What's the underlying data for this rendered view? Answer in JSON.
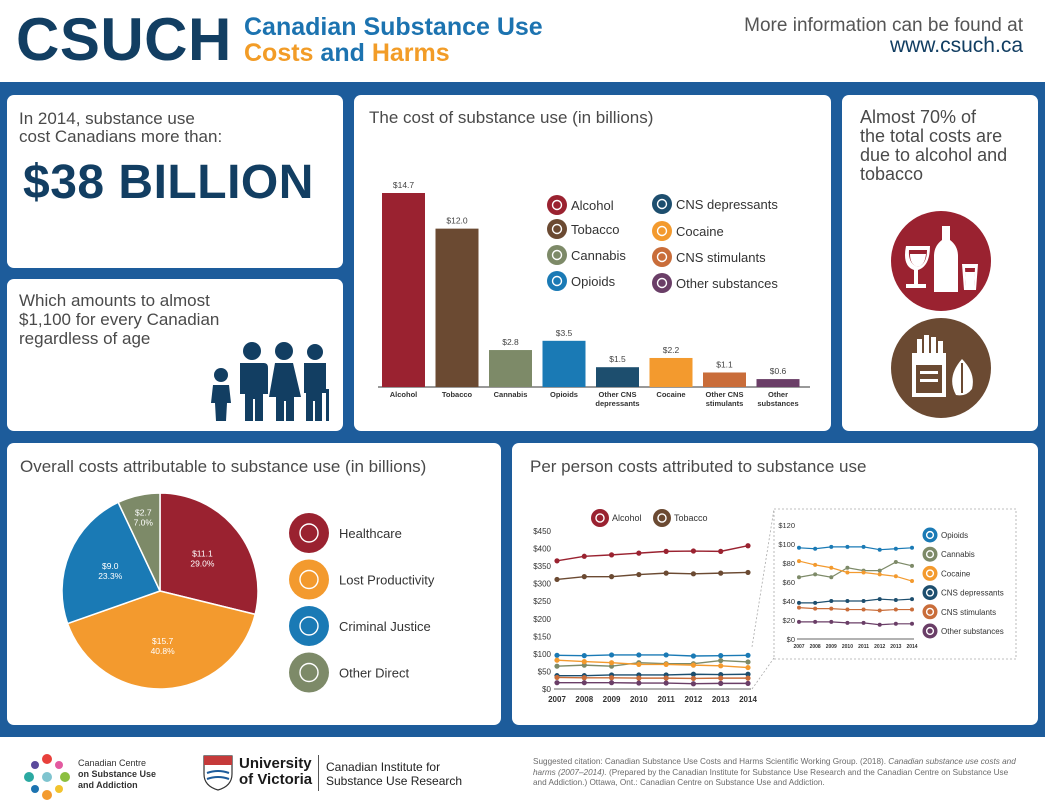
{
  "header": {
    "logo": "CSUCH",
    "title_line1": "Canadian Substance Use",
    "title_line2_a": "Costs",
    "title_line2_b": "and",
    "title_line2_c": "Harms",
    "info_text": "More information can be found at",
    "info_url": "www.csuch.ca"
  },
  "panel_total": {
    "line1": "In 2014, substance use",
    "line2": "cost Canadians more than:",
    "big_value": "$38 BILLION"
  },
  "panel_per_capita": {
    "line1": "Which amounts to almost",
    "line2": "$1,100 for every Canadian",
    "line3": "regardless of age"
  },
  "panel_70": {
    "line1": "Almost 70% of",
    "line2": "the total costs are",
    "line3": "due to alcohol and",
    "line4": "tobacco"
  },
  "colors": {
    "alcohol": "#9a2230",
    "tobacco": "#6b4a32",
    "cannabis": "#7d8a68",
    "opioids": "#1a7ab5",
    "cns_depressants": "#1d4e6e",
    "cocaine": "#f39a2e",
    "cns_stimulants": "#c96d3a",
    "other": "#6a3e67",
    "navy": "#123e62",
    "blue_bg": "#1d5c9b"
  },
  "chart_data": [
    {
      "type": "bar",
      "title": "The cost of substance use (in billions)",
      "categories": [
        "Alcohol",
        "Tobacco",
        "Cannabis",
        "Opioids",
        "Other CNS depressants",
        "Cocaine",
        "Other CNS stimulants",
        "Other substances"
      ],
      "values": [
        14.7,
        12.0,
        2.8,
        3.5,
        1.5,
        2.2,
        1.1,
        0.6
      ],
      "value_labels": [
        "$14.7",
        "$12.0",
        "$2.8",
        "$3.5",
        "$1.5",
        "$2.2",
        "$1.1",
        "$0.6"
      ],
      "ylim": [
        0,
        16
      ],
      "legend": [
        "Alcohol",
        "Tobacco",
        "Cannabis",
        "Opioids",
        "CNS depressants",
        "Cocaine",
        "CNS stimulants",
        "Other substances"
      ],
      "legend_icons": [
        "wine-glass-icon",
        "cigarette-icon",
        "leaf-icon",
        "pills-icon",
        "head-icon",
        "line-icon",
        "head-stimulant-icon",
        "head-other-icon"
      ]
    },
    {
      "type": "pie",
      "title": "Overall costs attributable to substance use (in billions)",
      "labels": [
        "Healthcare",
        "Lost Productivity",
        "Criminal Justice",
        "Other Direct"
      ],
      "values": [
        11.1,
        15.7,
        9.0,
        2.7
      ],
      "value_labels": [
        "$11.1",
        "$15.7",
        "$9.0",
        "$2.7"
      ],
      "percent_labels": [
        "29.0%",
        "40.8%",
        "23.3%",
        "7.0%"
      ],
      "colors": [
        "#9a2230",
        "#f39a2e",
        "#1a7ab5",
        "#7d8a68"
      ],
      "legend_icons": [
        "health-hand-icon",
        "worker-icon",
        "courthouse-icon",
        "folder-gear-icon"
      ]
    },
    {
      "type": "line",
      "title": "Per person costs attributed to substance use",
      "x": [
        2007,
        2008,
        2009,
        2010,
        2011,
        2012,
        2013,
        2014
      ],
      "ylim": [
        0,
        450
      ],
      "yticks": [
        "$0",
        "$50",
        "$100",
        "$150",
        "$200",
        "$250",
        "$300",
        "$350",
        "$400",
        "$450"
      ],
      "series": [
        {
          "name": "Alcohol",
          "values": [
            365,
            378,
            382,
            387,
            392,
            393,
            392,
            408
          ]
        },
        {
          "name": "Tobacco",
          "values": [
            312,
            320,
            320,
            326,
            330,
            328,
            330,
            332
          ]
        },
        {
          "name": "Opioids",
          "values": [
            96,
            95,
            97,
            97,
            97,
            94,
            95,
            96
          ]
        },
        {
          "name": "Cannabis",
          "values": [
            65,
            68,
            65,
            75,
            72,
            72,
            81,
            77
          ]
        },
        {
          "name": "Cocaine",
          "values": [
            82,
            78,
            75,
            70,
            70,
            68,
            66,
            61
          ]
        },
        {
          "name": "CNS depressants",
          "values": [
            38,
            38,
            40,
            40,
            40,
            42,
            41,
            42
          ]
        },
        {
          "name": "CNS stimulants",
          "values": [
            33,
            32,
            32,
            31,
            31,
            30,
            31,
            31
          ]
        },
        {
          "name": "Other substances",
          "values": [
            18,
            18,
            18,
            17,
            17,
            15,
            16,
            16
          ]
        }
      ],
      "inset": {
        "ylim": [
          0,
          120
        ],
        "yticks": [
          "$0",
          "$20",
          "$40",
          "$60",
          "$80",
          "$100",
          "$120"
        ],
        "series_names": [
          "Opioids",
          "Cannabis",
          "Cocaine",
          "CNS depressants",
          "CNS stimulants",
          "Other substances"
        ]
      }
    }
  ],
  "footer": {
    "ccsa_line1": "Canadian Centre",
    "ccsa_line2": "on Substance Use",
    "ccsa_line3": "and Addiction",
    "uvic_line1": "University",
    "uvic_line2": "of Victoria",
    "cisur_line1": "Canadian Institute for",
    "cisur_line2": "Substance Use Research",
    "citation_a": "Suggested citation: Canadian Substance Use Costs and Harms Scientific Working Group. (2018).",
    "citation_title": "Canadian substance use costs and harms (2007–2014).",
    "citation_b": "(Prepared by the Canadian Institute for Substance Use Research and the Canadian Centre on Substance Use and Addiction.) Ottawa, Ont.: Canadian Centre on Substance Use and Addiction."
  }
}
